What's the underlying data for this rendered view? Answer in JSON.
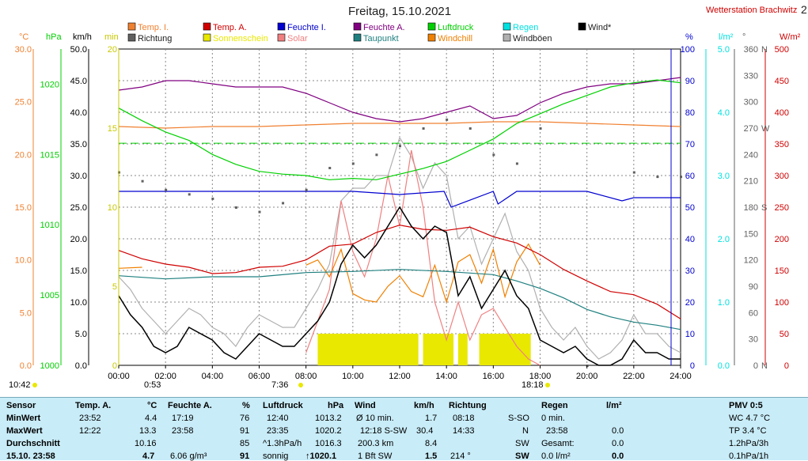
{
  "title": "Freitag, 15.10.2021",
  "station": "Wetterstation Brachwitz",
  "corner_digit": "2",
  "colors": {
    "temp_i": "#f08030",
    "temp_a": "#d00000",
    "feuchte_i": "#0000d0",
    "feuchte_a": "#800080",
    "luftdruck": "#00d000",
    "regen": "#00e0e0",
    "wind": "#000000",
    "richtung": "#606060",
    "sonnenschein": "#e8e800",
    "solar": "#f08080",
    "taupunkt": "#208080",
    "windchill": "#f08000",
    "windboeen": "#b0b0b0"
  },
  "legend": {
    "temp_i": "Temp. I.",
    "temp_a": "Temp. A.",
    "feuchte_i": "Feuchte I.",
    "feuchte_a": "Feuchte A.",
    "luftdruck": "Luftdruck",
    "regen": "Regen",
    "wind": "Wind*",
    "richtung": "Richtung",
    "sonnenschein": "Sonnenschein",
    "solar": "Solar",
    "taupunkt": "Taupunkt",
    "windchill": "Windchill",
    "windboeen": "Windböen"
  },
  "axis_units": {
    "temp": "°C",
    "pressure": "hPa",
    "wind": "km/h",
    "sun": "min",
    "humidity": "%",
    "rain": "l/m²",
    "direction": "°",
    "solar": "W/m²"
  },
  "sun_markers": {
    "sunrise": "7:36",
    "sunset": "18:18",
    "moonset": "0:53",
    "daylength": "10:42"
  },
  "chart_data": {
    "type": "line",
    "x": {
      "label": "",
      "ticks": [
        "00:00",
        "02:00",
        "04:00",
        "06:00",
        "08:00",
        "10:00",
        "12:00",
        "14:00",
        "16:00",
        "18:00",
        "20:00",
        "22:00",
        "24:00"
      ],
      "range": [
        0,
        24
      ]
    },
    "y_axes": {
      "temp": {
        "range": [
          0,
          30
        ],
        "ticks": [
          "0.0",
          "5.0",
          "10.0",
          "15.0",
          "20.0",
          "25.0",
          "30.0"
        ]
      },
      "pressure": {
        "range": [
          1000,
          1022.5
        ],
        "ticks": [
          "1000",
          "1005",
          "1010",
          "1015",
          "1020"
        ]
      },
      "wind": {
        "range": [
          0,
          50
        ],
        "ticks": [
          "0.0",
          "5.0",
          "10.0",
          "15.0",
          "20.0",
          "25.0",
          "30.0",
          "35.0",
          "40.0",
          "45.0",
          "50.0"
        ]
      },
      "sun": {
        "range": [
          0,
          20
        ],
        "ticks": [
          "0",
          "5",
          "10",
          "15",
          "20"
        ]
      },
      "humidity": {
        "range": [
          0,
          100
        ],
        "ticks": [
          "0",
          "10",
          "20",
          "30",
          "40",
          "50",
          "60",
          "70",
          "80",
          "90",
          "100"
        ]
      },
      "rain": {
        "range": [
          0,
          5
        ],
        "ticks": [
          "0.0",
          "1.0",
          "2.0",
          "3.0",
          "4.0",
          "5.0"
        ]
      },
      "direction": {
        "range": [
          0,
          360
        ],
        "ticks": [
          "0",
          "30",
          "60",
          "90",
          "120",
          "150",
          "180",
          "210",
          "240",
          "270",
          "300",
          "330",
          "360"
        ],
        "labels": [
          "N",
          "S",
          "W",
          "N"
        ]
      },
      "solar": {
        "range": [
          0,
          500
        ],
        "ticks": [
          "0",
          "50",
          "100",
          "150",
          "200",
          "250",
          "300",
          "350",
          "400",
          "450",
          "500"
        ]
      }
    },
    "series": [
      {
        "name": "Temp. A.",
        "axis": "temp",
        "x": [
          0,
          1,
          2,
          3,
          4,
          5,
          6,
          7,
          8,
          9,
          10,
          11,
          12,
          13,
          14,
          15,
          16,
          17,
          18,
          19,
          20,
          21,
          22,
          23,
          24
        ],
        "values": [
          10.9,
          10.1,
          9.6,
          9.3,
          8.7,
          8.8,
          9.3,
          9.4,
          10.0,
          11.3,
          11.5,
          12.6,
          13.3,
          12.9,
          12.8,
          13.1,
          12.2,
          11.6,
          10.5,
          9.1,
          8.0,
          7.0,
          6.7,
          5.8,
          4.4
        ]
      },
      {
        "name": "Taupunkt",
        "axis": "temp",
        "x": [
          0,
          2,
          4,
          6,
          8,
          10,
          12,
          14,
          16,
          17,
          18,
          19,
          20,
          21,
          22,
          23,
          24
        ],
        "values": [
          8.5,
          8.2,
          8.4,
          8.4,
          8.8,
          8.9,
          9.1,
          8.9,
          8.6,
          8.0,
          7.3,
          6.4,
          5.3,
          4.6,
          4.1,
          3.8,
          3.4
        ]
      },
      {
        "name": "Temp. I.",
        "axis": "sun",
        "x": [
          0,
          2,
          4,
          6,
          8,
          10,
          12,
          14,
          16,
          18,
          20,
          22,
          24
        ],
        "values": [
          15.1,
          15.0,
          15.1,
          15.1,
          15.2,
          15.3,
          15.3,
          15.3,
          15.4,
          15.4,
          15.3,
          15.2,
          15.1
        ]
      },
      {
        "name": "Feuchte A.",
        "axis": "humidity",
        "x": [
          0,
          1,
          2,
          3,
          4,
          5,
          6,
          7,
          8,
          9,
          10,
          11,
          12,
          13,
          14,
          15,
          16,
          17,
          18,
          19,
          20,
          21,
          22,
          23,
          24
        ],
        "values": [
          87,
          88,
          90,
          90,
          89,
          88,
          88,
          88,
          86,
          83,
          80,
          78,
          77,
          78,
          80,
          82,
          78,
          79,
          83,
          86,
          88,
          89,
          89,
          90,
          91
        ]
      },
      {
        "name": "Feuchte I.",
        "axis": "humidity",
        "x": [
          0,
          2,
          4,
          6,
          8,
          10,
          12,
          13.9,
          14.2,
          16,
          16.2,
          17,
          18,
          20,
          21.5,
          22,
          24
        ],
        "values": [
          55,
          55,
          55,
          55,
          55,
          55,
          54,
          55,
          50,
          55,
          51,
          55,
          55,
          55,
          52,
          53,
          53
        ]
      },
      {
        "name": "Luftdruck",
        "axis": "pressure",
        "x": [
          0,
          1,
          2,
          3,
          4,
          5,
          6,
          7,
          8,
          9,
          10,
          11,
          12,
          13,
          14,
          15,
          16,
          17,
          18,
          19,
          20,
          21,
          22,
          23,
          24
        ],
        "values": [
          1018.3,
          1017.4,
          1016.6,
          1016.0,
          1015.0,
          1014.3,
          1013.8,
          1013.6,
          1013.5,
          1013.2,
          1013.3,
          1013.2,
          1013.6,
          1014.0,
          1014.5,
          1015.3,
          1016.1,
          1017.2,
          1017.9,
          1018.6,
          1019.2,
          1019.8,
          1020.1,
          1020.3,
          1020.1
        ]
      },
      {
        "name": "Wind*",
        "axis": "wind",
        "x": [
          0,
          0.5,
          1,
          1.5,
          2,
          2.5,
          3,
          3.5,
          4,
          4.5,
          5,
          5.5,
          6,
          6.5,
          7,
          7.5,
          8,
          8.5,
          9,
          9.5,
          10,
          10.5,
          11,
          11.5,
          12,
          12.5,
          13,
          13.5,
          14,
          14.5,
          15,
          15.5,
          16,
          16.5,
          17,
          17.5,
          18,
          18.5,
          19,
          19.5,
          20,
          20.5,
          21,
          21.5,
          22,
          22.5,
          23,
          23.5,
          24
        ],
        "values": [
          11,
          8,
          6,
          3,
          2,
          3,
          6,
          5,
          4,
          2,
          1,
          3,
          5,
          4,
          3,
          3,
          5,
          7,
          10,
          16,
          19,
          17,
          19,
          22,
          25,
          22,
          20,
          22,
          21,
          11,
          14,
          9,
          12,
          15,
          11,
          9,
          4,
          3,
          2,
          3,
          1,
          0,
          0,
          1,
          4,
          2,
          2,
          1,
          1
        ]
      },
      {
        "name": "Windböen",
        "axis": "wind",
        "x": [
          0,
          0.5,
          1,
          1.5,
          2,
          2.5,
          3,
          3.5,
          4,
          4.5,
          5,
          5.5,
          6,
          6.5,
          7,
          7.5,
          8,
          8.5,
          9,
          9.5,
          10,
          10.5,
          11,
          11.5,
          12,
          12.5,
          13,
          13.5,
          14,
          14.5,
          15,
          15.5,
          16,
          16.5,
          17,
          17.5,
          18,
          18.5,
          19,
          19.5,
          20,
          20.5,
          21,
          21.5,
          22,
          22.5,
          23,
          23.5,
          24
        ],
        "values": [
          14,
          12,
          9,
          7,
          5,
          7,
          9,
          8,
          6,
          5,
          3,
          6,
          8,
          7,
          6,
          6,
          9,
          12,
          16,
          26,
          28,
          28,
          30,
          30,
          36,
          33,
          28,
          32,
          30,
          20,
          22,
          16,
          20,
          24,
          18,
          15,
          9,
          6,
          4,
          6,
          3,
          1,
          2,
          4,
          8,
          5,
          5,
          3,
          2
        ]
      },
      {
        "name": "Windchill",
        "axis": "temp",
        "x": [
          0,
          1,
          2,
          3,
          4,
          5,
          6,
          7,
          8,
          8.5,
          9,
          9.5,
          10,
          10.5,
          11,
          11.5,
          12,
          12.5,
          13,
          13.5,
          14,
          14.5,
          15,
          15.5,
          16,
          16.5,
          17,
          17.5,
          18
        ],
        "values": [
          9.2,
          9.3,
          null,
          null,
          null,
          null,
          null,
          null,
          9.5,
          10.0,
          8.4,
          11.0,
          6.8,
          6.2,
          6.0,
          7.5,
          8.5,
          7.0,
          6.5,
          9.5,
          6.0,
          9.8,
          10.5,
          7.8,
          11.0,
          6.5,
          9.8,
          11.5,
          9.5
        ]
      },
      {
        "name": "Solar",
        "axis": "solar",
        "x": [
          8,
          9,
          9.5,
          10,
          10.5,
          11,
          11.5,
          12,
          12.5,
          13,
          13.5,
          14,
          14.5,
          15,
          15.5,
          16,
          16.5,
          17,
          17.5,
          18
        ],
        "values": [
          20,
          120,
          260,
          180,
          140,
          200,
          300,
          220,
          340,
          250,
          100,
          40,
          100,
          40,
          80,
          90,
          60,
          30,
          10,
          0
        ]
      },
      {
        "name": "Sonnenschein",
        "axis": "sun",
        "x": [
          8.5,
          12.8,
          13,
          14.3,
          14.5,
          14.9,
          15.4,
          17.6
        ],
        "values": [
          2.0,
          2.0,
          2.0,
          2.0,
          2.0,
          2.0,
          2.0,
          2.0
        ]
      },
      {
        "name": "Richtung",
        "axis": "direction",
        "x": [
          0,
          1,
          2,
          3,
          4,
          5,
          6,
          7,
          8,
          9,
          10,
          11,
          12,
          13,
          14,
          15,
          16,
          17,
          18,
          20,
          22,
          23,
          24
        ],
        "values": [
          220,
          210,
          200,
          195,
          190,
          180,
          175,
          185,
          200,
          225,
          230,
          240,
          250,
          270,
          280,
          270,
          240,
          230,
          270,
          0,
          220,
          215,
          215
        ]
      }
    ],
    "reference_lines": [
      {
        "name": "Regen",
        "axis": "pressure",
        "value": 1015.8
      }
    ]
  },
  "stats": {
    "sensor": {
      "header": "Sensor",
      "rows": [
        "MinWert",
        "MaxWert",
        "Durchschnitt",
        "15.10. 23:58"
      ]
    },
    "temp_a": {
      "header": "Temp. A.",
      "unit": "°C",
      "rows": [
        [
          "23:52",
          "4.4"
        ],
        [
          "12:22",
          "13.3"
        ],
        [
          "",
          "10.16"
        ],
        [
          "",
          "4.7"
        ]
      ]
    },
    "feuchte_a": {
      "header": "Feuchte A.",
      "unit": "%",
      "rows": [
        [
          "17:19",
          "76"
        ],
        [
          "23:58",
          "91"
        ],
        [
          "",
          "85"
        ],
        [
          "6.06 g/m³",
          "91"
        ]
      ]
    },
    "luftdruck": {
      "header": "Luftdruck",
      "unit": "hPa",
      "rows": [
        [
          "12:40",
          "1013.2"
        ],
        [
          "23:35",
          "1020.2"
        ],
        [
          "^1.3hPa/h",
          "1016.3"
        ],
        [
          "sonnig",
          "↑1020.1"
        ]
      ]
    },
    "wind": {
      "header": "Wind",
      "unit": "km/h",
      "rows": [
        [
          "Ø 10 min.",
          "1.7"
        ],
        [
          "12:18  S-SW",
          "30.4"
        ],
        [
          "200.3 km",
          "8.4"
        ],
        [
          "1 Bft SW",
          "1.5"
        ]
      ]
    },
    "richtung": {
      "header": "Richtung",
      "rows": [
        [
          "08:18",
          "S-SO"
        ],
        [
          "14:33",
          "N"
        ],
        [
          "",
          "SW"
        ],
        [
          "214 °",
          "SW"
        ]
      ]
    },
    "regen": {
      "header": "Regen",
      "unit": "l/m²",
      "rows": [
        [
          "0 min.",
          ""
        ],
        [
          "23:58",
          "0.0"
        ],
        [
          "Gesamt:",
          "0.0"
        ],
        [
          "0.0 l/m²",
          "0.0"
        ]
      ]
    },
    "pmv": {
      "header": "PMV 0:5",
      "rows": [
        "WC 4.7 °C",
        "TP 3.4 °C",
        "1.2hPa/3h",
        "0.1hPa/1h"
      ]
    }
  }
}
